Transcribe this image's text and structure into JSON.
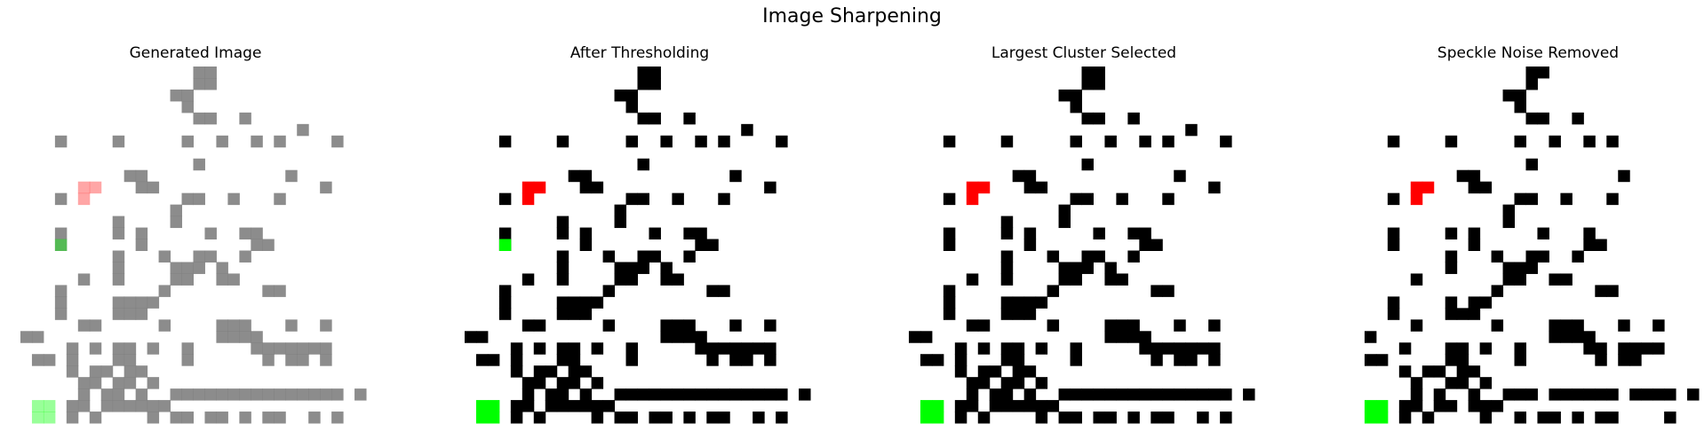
{
  "figure": {
    "title": "Image Sharpening",
    "panels": [
      {
        "title": "Generated Image",
        "type": "soft"
      },
      {
        "title": "After Thresholding",
        "type": "binary"
      },
      {
        "title": "Largest Cluster Selected",
        "type": "binary"
      },
      {
        "title": "Speckle Noise Removed",
        "type": "clean"
      }
    ]
  },
  "colors": {
    "black": "#000000",
    "gray": "#808080",
    "red": "#ff0000",
    "green": "#00ff00",
    "white": "#ffffff"
  },
  "grid": {
    "size": 28,
    "black_cells": [
      [
        16,
        0
      ],
      [
        17,
        0
      ],
      [
        16,
        1
      ],
      [
        17,
        1
      ],
      [
        14,
        2
      ],
      [
        15,
        2
      ],
      [
        15,
        3
      ],
      [
        16,
        4
      ],
      [
        17,
        4
      ],
      [
        20,
        4
      ],
      [
        25,
        5
      ],
      [
        4,
        6
      ],
      [
        9,
        6
      ],
      [
        15,
        6
      ],
      [
        18,
        6
      ],
      [
        21,
        6
      ],
      [
        23,
        6
      ],
      [
        28,
        6
      ],
      [
        16,
        8
      ],
      [
        10,
        9
      ],
      [
        11,
        9
      ],
      [
        24,
        9
      ],
      [
        11,
        10
      ],
      [
        12,
        10
      ],
      [
        27,
        10
      ],
      [
        4,
        11
      ],
      [
        15,
        11
      ],
      [
        16,
        11
      ],
      [
        19,
        11
      ],
      [
        23,
        11
      ],
      [
        14,
        12
      ],
      [
        9,
        13
      ],
      [
        14,
        13
      ],
      [
        4,
        14
      ],
      [
        4,
        15
      ],
      [
        9,
        14
      ],
      [
        11,
        14
      ],
      [
        17,
        14
      ],
      [
        20,
        14
      ],
      [
        21,
        14
      ],
      [
        11,
        15
      ],
      [
        21,
        15
      ],
      [
        22,
        15
      ],
      [
        9,
        16
      ],
      [
        9,
        17
      ],
      [
        9,
        18
      ],
      [
        13,
        16
      ],
      [
        16,
        16
      ],
      [
        17,
        16
      ],
      [
        20,
        16
      ],
      [
        15,
        17
      ],
      [
        16,
        17
      ],
      [
        18,
        17
      ],
      [
        14,
        17
      ],
      [
        6,
        18
      ],
      [
        14,
        18
      ],
      [
        15,
        18
      ],
      [
        18,
        18
      ],
      [
        19,
        18
      ],
      [
        4,
        19
      ],
      [
        4,
        20
      ],
      [
        4,
        21
      ],
      [
        13,
        19
      ],
      [
        22,
        19
      ],
      [
        23,
        19
      ],
      [
        9,
        20
      ],
      [
        10,
        20
      ],
      [
        11,
        20
      ],
      [
        12,
        20
      ],
      [
        9,
        21
      ],
      [
        10,
        21
      ],
      [
        11,
        21
      ],
      [
        6,
        22
      ],
      [
        7,
        22
      ],
      [
        13,
        22
      ],
      [
        18,
        22
      ],
      [
        19,
        22
      ],
      [
        20,
        22
      ],
      [
        24,
        22
      ],
      [
        27,
        22
      ],
      [
        1,
        23
      ],
      [
        2,
        23
      ],
      [
        18,
        23
      ],
      [
        19,
        23
      ],
      [
        20,
        23
      ],
      [
        21,
        23
      ],
      [
        5,
        24
      ],
      [
        7,
        24
      ],
      [
        9,
        24
      ],
      [
        10,
        24
      ],
      [
        12,
        24
      ],
      [
        15,
        24
      ],
      [
        21,
        24
      ],
      [
        22,
        24
      ],
      [
        23,
        24
      ],
      [
        24,
        24
      ],
      [
        25,
        24
      ],
      [
        26,
        24
      ],
      [
        27,
        24
      ],
      [
        2,
        25
      ],
      [
        3,
        25
      ],
      [
        5,
        25
      ],
      [
        9,
        25
      ],
      [
        10,
        25
      ],
      [
        15,
        25
      ],
      [
        22,
        25
      ],
      [
        24,
        25
      ],
      [
        25,
        25
      ],
      [
        27,
        25
      ],
      [
        5,
        26
      ],
      [
        7,
        26
      ],
      [
        8,
        26
      ],
      [
        10,
        26
      ],
      [
        11,
        26
      ],
      [
        6,
        27
      ],
      [
        7,
        27
      ],
      [
        9,
        27
      ],
      [
        10,
        27
      ],
      [
        12,
        27
      ],
      [
        14,
        28
      ],
      [
        15,
        28
      ],
      [
        16,
        28
      ],
      [
        17,
        28
      ],
      [
        18,
        28
      ],
      [
        19,
        28
      ],
      [
        20,
        28
      ],
      [
        21,
        28
      ],
      [
        22,
        28
      ],
      [
        23,
        28
      ],
      [
        24,
        28
      ],
      [
        25,
        28
      ],
      [
        26,
        28
      ],
      [
        27,
        28
      ],
      [
        28,
        28
      ],
      [
        6,
        28
      ],
      [
        8,
        28
      ],
      [
        9,
        28
      ],
      [
        11,
        28
      ],
      [
        30,
        28
      ],
      [
        5,
        29
      ],
      [
        6,
        29
      ],
      [
        8,
        29
      ],
      [
        9,
        29
      ],
      [
        10,
        29
      ],
      [
        11,
        29
      ],
      [
        12,
        29
      ],
      [
        13,
        29
      ],
      [
        5,
        30
      ],
      [
        7,
        30
      ],
      [
        12,
        30
      ],
      [
        14,
        30
      ],
      [
        15,
        30
      ],
      [
        17,
        30
      ],
      [
        18,
        30
      ],
      [
        20,
        30
      ],
      [
        22,
        30
      ],
      [
        23,
        30
      ],
      [
        26,
        30
      ],
      [
        28,
        30
      ]
    ],
    "red_cells": [
      [
        6,
        10
      ],
      [
        7,
        10
      ],
      [
        6,
        11
      ]
    ],
    "green_cells": [
      [
        4,
        15
      ],
      [
        2,
        30
      ],
      [
        3,
        30
      ],
      [
        2,
        29
      ],
      [
        3,
        29
      ]
    ]
  }
}
